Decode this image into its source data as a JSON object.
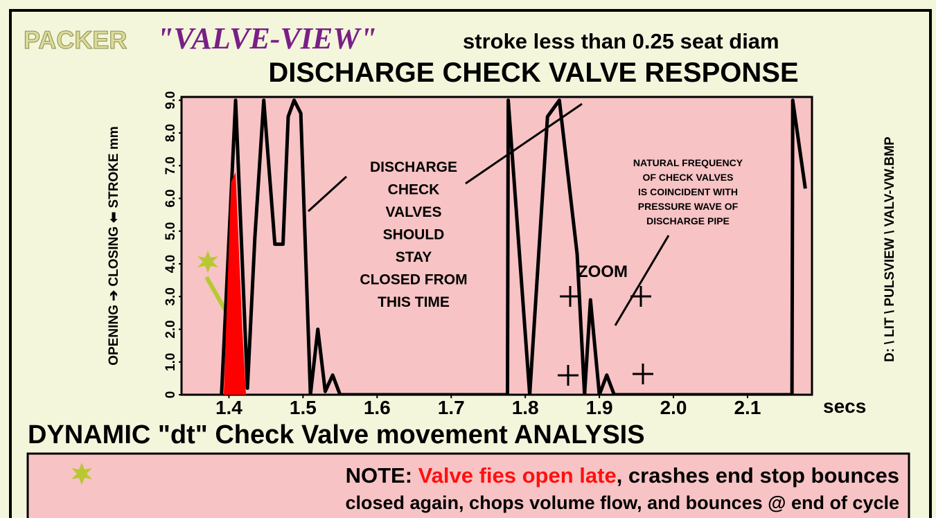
{
  "chart_data": {
    "type": "line",
    "brand": "PACKER",
    "product": "\"VALVE-VIEW\"",
    "tagline": "stroke less than 0.25 seat diam",
    "title": "DISCHARGE CHECK VALVE RESPONSE",
    "y_label": "OPENING ➔ CLOSING ⬅ STROKE mm",
    "x_unit": "secs",
    "side_label": "D: \\ LIT \\ PULSVIEW \\ VALV-VW.BMP",
    "subtitle": "DYNAMIC \"dt\"  Check Valve movement ANALYSIS",
    "xlim": [
      1.336,
      2.187
    ],
    "ylim": [
      0,
      9.1
    ],
    "xticks": [
      1.4,
      1.5,
      1.6,
      1.7,
      1.8,
      1.9,
      {
        "value": 2,
        "label": "2.0"
      },
      2.1
    ],
    "yticks": [
      0,
      {
        "value": 1,
        "label": "1.0"
      },
      {
        "value": 2,
        "label": "2.0"
      },
      {
        "value": 3,
        "label": "3.0"
      },
      {
        "value": 4,
        "label": "4.0"
      },
      {
        "value": 5,
        "label": "5.0"
      },
      {
        "value": 6,
        "label": "6.0"
      },
      {
        "value": 7,
        "label": "7.0"
      },
      {
        "value": 8,
        "label": "8.0"
      },
      {
        "value": 9,
        "label": "9.0"
      }
    ],
    "series": [
      {
        "color": "#000000",
        "x": [
          1.39,
          1.409,
          1.425,
          1.435,
          1.447,
          1.462,
          1.473,
          1.48,
          1.488,
          1.497,
          1.51,
          1.52,
          1.53,
          1.54,
          1.55,
          1.776,
          1.777,
          1.806,
          1.83,
          1.846,
          1.87,
          1.88,
          1.888,
          1.9,
          1.91,
          1.92,
          2.16,
          2.161,
          2.178
        ],
        "values": [
          0,
          9,
          0.2,
          4.8,
          9,
          4.6,
          4.6,
          8.5,
          9,
          8.6,
          0,
          2,
          0.1,
          0.6,
          0,
          0,
          9,
          0,
          8.5,
          9,
          4.3,
          0,
          2.9,
          0,
          0.6,
          0,
          0,
          9,
          6.3
        ]
      },
      {
        "color": "#ff0000",
        "fill": true,
        "x": [
          1.393,
          1.403,
          1.409,
          1.418,
          1.423
        ],
        "values": [
          0,
          6.5,
          6.8,
          2,
          0
        ]
      }
    ],
    "annotations": [
      {
        "lines": [
          "DISCHARGE",
          "CHECK",
          "VALVES",
          "SHOULD",
          "STAY",
          "CLOSED FROM",
          "THIS TIME"
        ]
      },
      {
        "lines": [
          "NATURAL FREQUENCY",
          "OF CHECK VALVES",
          "IS COINCIDENT WITH",
          "PRESSURE WAVE OF",
          "DISCHARGE PIPE"
        ]
      },
      {
        "lines": [
          "ZOOM"
        ]
      }
    ],
    "note": {
      "lead": "NOTE: ",
      "highlight": "Valve fies open late",
      "rest": ", crashes end stop bounces",
      "line2": "closed again, chops volume flow, and bounces @ end of cycle"
    }
  }
}
